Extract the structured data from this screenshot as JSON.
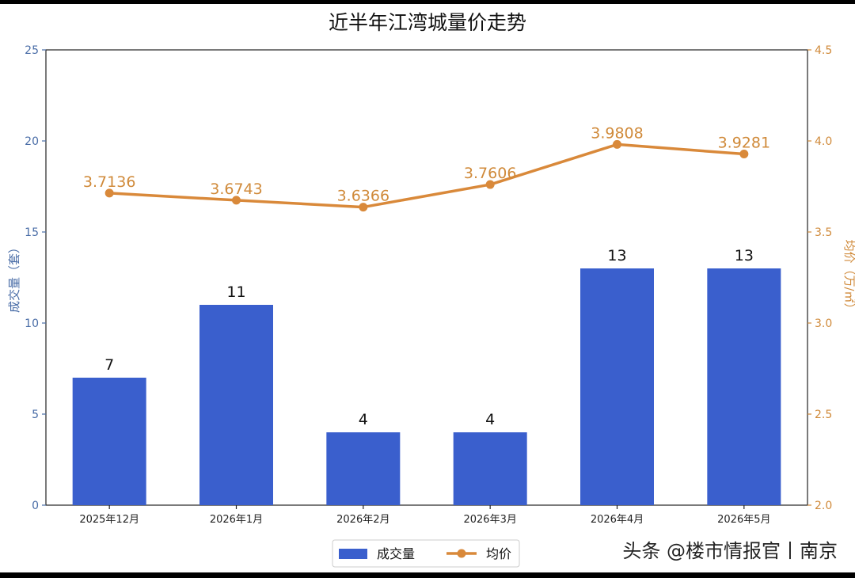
{
  "chart_data": {
    "type": "bar",
    "title": "近半年江湾城量价走势",
    "categories": [
      "2025年12月",
      "2026年1月",
      "2026年2月",
      "2026年3月",
      "2026年4月",
      "2026年5月"
    ],
    "series": [
      {
        "name": "成交量",
        "type": "bar",
        "axis": "left",
        "values": [
          7,
          11,
          4,
          4,
          13,
          13
        ]
      },
      {
        "name": "均价",
        "type": "line",
        "axis": "right",
        "values": [
          3.7136,
          3.6743,
          3.6366,
          3.7606,
          3.9808,
          3.9281
        ]
      }
    ],
    "ylabel": "成交量（套）",
    "y2label": "均价（万/㎡）",
    "ylim": [
      0,
      25
    ],
    "y2lim": [
      2.0,
      4.5
    ],
    "yticks": [
      "0",
      "5",
      "10",
      "15",
      "20",
      "25"
    ],
    "y2ticks": [
      "2.0",
      "2.5",
      "3.0",
      "3.5",
      "4.0",
      "4.5"
    ],
    "bar_labels": [
      "7",
      "11",
      "4",
      "4",
      "13",
      "13"
    ],
    "line_labels": [
      "3.7136",
      "3.6743",
      "3.6366",
      "3.7606",
      "3.9808",
      "3.9281"
    ],
    "grid": false,
    "legend": "bottom-center"
  },
  "colors": {
    "bar": "#3a5fcd",
    "line": "#d9893a",
    "left_axis": "#4a6da7",
    "right_axis": "#d08a3a"
  },
  "watermark": "头条 @楼市情报官丨南京"
}
